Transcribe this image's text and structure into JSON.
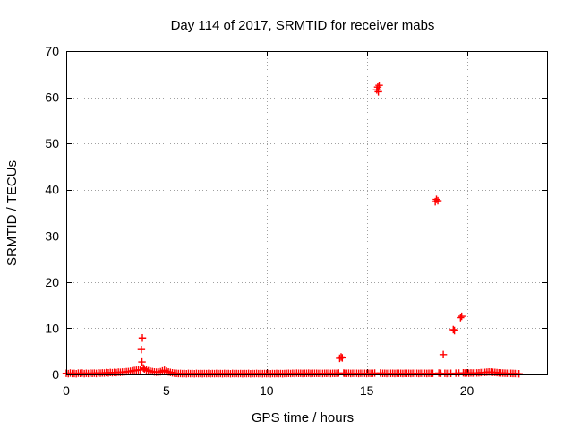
{
  "chart_data": {
    "type": "scatter",
    "title": "Day 114 of 2017, SRMTID for receiver mabs",
    "xlabel": "GPS time / hours",
    "ylabel": "SRMTID / TECUs",
    "xlim": [
      0,
      24
    ],
    "ylim": [
      0,
      70
    ],
    "x_ticks": [
      0,
      5,
      10,
      15,
      20
    ],
    "y_ticks": [
      0,
      10,
      20,
      30,
      40,
      50,
      60,
      70
    ],
    "x_tick_labels": [
      "0",
      "5",
      "10",
      "15",
      "20"
    ],
    "y_tick_labels": [
      "0",
      "10",
      "20",
      "30",
      "40",
      "50",
      "60",
      "70"
    ],
    "grid": true,
    "legend": "none",
    "marker": "plus",
    "point_color": "#ff0000",
    "series": [
      {
        "name": "SRMTID",
        "points": [
          [
            0.0,
            0.25
          ],
          [
            0.1,
            0.18
          ],
          [
            0.2,
            0.3
          ],
          [
            0.3,
            0.2
          ],
          [
            0.4,
            0.22
          ],
          [
            0.5,
            0.16
          ],
          [
            0.6,
            0.28
          ],
          [
            0.7,
            0.24
          ],
          [
            0.8,
            0.3
          ],
          [
            0.9,
            0.18
          ],
          [
            1.0,
            0.26
          ],
          [
            1.1,
            0.2
          ],
          [
            1.2,
            0.3
          ],
          [
            1.3,
            0.24
          ],
          [
            1.4,
            0.28
          ],
          [
            1.5,
            0.22
          ],
          [
            1.6,
            0.35
          ],
          [
            1.7,
            0.28
          ],
          [
            1.8,
            0.32
          ],
          [
            1.9,
            0.3
          ],
          [
            2.0,
            0.4
          ],
          [
            2.1,
            0.34
          ],
          [
            2.2,
            0.42
          ],
          [
            2.3,
            0.38
          ],
          [
            2.4,
            0.44
          ],
          [
            2.5,
            0.4
          ],
          [
            2.6,
            0.5
          ],
          [
            2.7,
            0.46
          ],
          [
            2.8,
            0.52
          ],
          [
            2.9,
            0.55
          ],
          [
            3.0,
            0.6
          ],
          [
            3.1,
            0.62
          ],
          [
            3.2,
            0.7
          ],
          [
            3.3,
            0.78
          ],
          [
            3.4,
            0.85
          ],
          [
            3.5,
            0.9
          ],
          [
            3.6,
            0.95
          ],
          [
            3.7,
            1.0
          ],
          [
            3.75,
            5.4
          ],
          [
            3.78,
            2.7
          ],
          [
            3.8,
            7.9
          ],
          [
            3.85,
            1.4
          ],
          [
            3.9,
            1.2
          ],
          [
            4.0,
            0.95
          ],
          [
            4.1,
            0.8
          ],
          [
            4.2,
            0.7
          ],
          [
            4.3,
            0.62
          ],
          [
            4.4,
            0.55
          ],
          [
            4.5,
            0.5
          ],
          [
            4.6,
            0.52
          ],
          [
            4.7,
            0.58
          ],
          [
            4.8,
            0.75
          ],
          [
            4.9,
            0.9
          ],
          [
            5.0,
            0.7
          ],
          [
            5.1,
            0.55
          ],
          [
            5.2,
            0.45
          ],
          [
            5.3,
            0.35
          ],
          [
            5.4,
            0.28
          ],
          [
            5.5,
            0.24
          ],
          [
            5.6,
            0.2
          ],
          [
            5.7,
            0.22
          ],
          [
            5.8,
            0.18
          ],
          [
            5.9,
            0.2
          ],
          [
            6.0,
            0.16
          ],
          [
            6.1,
            0.22
          ],
          [
            6.2,
            0.18
          ],
          [
            6.3,
            0.2
          ],
          [
            6.4,
            0.16
          ],
          [
            6.5,
            0.22
          ],
          [
            6.6,
            0.18
          ],
          [
            6.7,
            0.2
          ],
          [
            6.8,
            0.17
          ],
          [
            6.9,
            0.2
          ],
          [
            7.0,
            0.18
          ],
          [
            7.1,
            0.22
          ],
          [
            7.2,
            0.16
          ],
          [
            7.3,
            0.2
          ],
          [
            7.4,
            0.18
          ],
          [
            7.5,
            0.22
          ],
          [
            7.6,
            0.18
          ],
          [
            7.7,
            0.2
          ],
          [
            7.8,
            0.17
          ],
          [
            7.9,
            0.22
          ],
          [
            8.0,
            0.18
          ],
          [
            8.1,
            0.2
          ],
          [
            8.2,
            0.16
          ],
          [
            8.3,
            0.22
          ],
          [
            8.4,
            0.18
          ],
          [
            8.5,
            0.2
          ],
          [
            8.6,
            0.18
          ],
          [
            8.7,
            0.21
          ],
          [
            8.8,
            0.17
          ],
          [
            8.9,
            0.2
          ],
          [
            9.0,
            0.18
          ],
          [
            9.1,
            0.22
          ],
          [
            9.2,
            0.16
          ],
          [
            9.3,
            0.2
          ],
          [
            9.4,
            0.18
          ],
          [
            9.5,
            0.22
          ],
          [
            9.6,
            0.18
          ],
          [
            9.7,
            0.2
          ],
          [
            9.8,
            0.17
          ],
          [
            9.9,
            0.2
          ],
          [
            10.0,
            0.18
          ],
          [
            10.1,
            0.22
          ],
          [
            10.2,
            0.16
          ],
          [
            10.3,
            0.2
          ],
          [
            10.4,
            0.18
          ],
          [
            10.5,
            0.22
          ],
          [
            10.6,
            0.18
          ],
          [
            10.7,
            0.2
          ],
          [
            10.8,
            0.17
          ],
          [
            10.9,
            0.2
          ],
          [
            11.0,
            0.22
          ],
          [
            11.1,
            0.24
          ],
          [
            11.2,
            0.2
          ],
          [
            11.3,
            0.26
          ],
          [
            11.4,
            0.22
          ],
          [
            11.5,
            0.28
          ],
          [
            11.6,
            0.24
          ],
          [
            11.7,
            0.25
          ],
          [
            11.8,
            0.22
          ],
          [
            11.9,
            0.26
          ],
          [
            12.0,
            0.24
          ],
          [
            12.1,
            0.27
          ],
          [
            12.2,
            0.22
          ],
          [
            12.3,
            0.25
          ],
          [
            12.4,
            0.24
          ],
          [
            12.5,
            0.26
          ],
          [
            12.6,
            0.23
          ],
          [
            12.7,
            0.25
          ],
          [
            12.8,
            0.22
          ],
          [
            12.9,
            0.26
          ],
          [
            13.0,
            0.24
          ],
          [
            13.1,
            0.27
          ],
          [
            13.2,
            0.22
          ],
          [
            13.3,
            0.25
          ],
          [
            13.4,
            0.24
          ],
          [
            13.5,
            0.26
          ],
          [
            13.6,
            0.3
          ],
          [
            13.65,
            3.5
          ],
          [
            13.72,
            3.8
          ],
          [
            13.78,
            3.6
          ],
          [
            13.85,
            0.3
          ],
          [
            13.9,
            0.26
          ],
          [
            14.0,
            0.24
          ],
          [
            14.1,
            0.28
          ],
          [
            14.2,
            0.22
          ],
          [
            14.3,
            0.25
          ],
          [
            14.4,
            0.24
          ],
          [
            14.5,
            0.26
          ],
          [
            14.6,
            0.22
          ],
          [
            14.7,
            0.25
          ],
          [
            14.8,
            0.24
          ],
          [
            14.9,
            0.26
          ],
          [
            15.0,
            0.22
          ],
          [
            15.1,
            0.25
          ],
          [
            15.2,
            0.24
          ],
          [
            15.3,
            0.26
          ],
          [
            15.4,
            0.3
          ],
          [
            15.5,
            61.6
          ],
          [
            15.55,
            62.2
          ],
          [
            15.58,
            61.2
          ],
          [
            15.62,
            62.6
          ],
          [
            15.68,
            0.3
          ],
          [
            15.7,
            0.28
          ],
          [
            15.8,
            0.24
          ],
          [
            15.9,
            0.26
          ],
          [
            16.0,
            0.22
          ],
          [
            16.1,
            0.25
          ],
          [
            16.2,
            0.24
          ],
          [
            16.3,
            0.26
          ],
          [
            16.4,
            0.22
          ],
          [
            16.5,
            0.25
          ],
          [
            16.6,
            0.24
          ],
          [
            16.7,
            0.26
          ],
          [
            16.8,
            0.22
          ],
          [
            16.9,
            0.25
          ],
          [
            17.0,
            0.24
          ],
          [
            17.1,
            0.26
          ],
          [
            17.2,
            0.22
          ],
          [
            17.3,
            0.25
          ],
          [
            17.4,
            0.24
          ],
          [
            17.5,
            0.26
          ],
          [
            17.6,
            0.22
          ],
          [
            17.7,
            0.25
          ],
          [
            17.8,
            0.24
          ],
          [
            17.9,
            0.26
          ],
          [
            18.0,
            0.22
          ],
          [
            18.1,
            0.25
          ],
          [
            18.2,
            0.24
          ],
          [
            18.3,
            0.26
          ],
          [
            18.42,
            37.4
          ],
          [
            18.48,
            37.9
          ],
          [
            18.55,
            37.6
          ],
          [
            18.6,
            0.3
          ],
          [
            18.7,
            0.26
          ],
          [
            18.82,
            4.3
          ],
          [
            18.9,
            0.26
          ],
          [
            19.0,
            0.22
          ],
          [
            19.1,
            0.25
          ],
          [
            19.2,
            0.24
          ],
          [
            19.32,
            9.7
          ],
          [
            19.38,
            9.5
          ],
          [
            19.45,
            0.28
          ],
          [
            19.6,
            0.3
          ],
          [
            19.68,
            12.3
          ],
          [
            19.74,
            12.6
          ],
          [
            19.82,
            0.35
          ],
          [
            19.9,
            0.3
          ],
          [
            20.0,
            0.34
          ],
          [
            20.1,
            0.28
          ],
          [
            20.2,
            0.32
          ],
          [
            20.3,
            0.3
          ],
          [
            20.4,
            0.35
          ],
          [
            20.5,
            0.32
          ],
          [
            20.6,
            0.36
          ],
          [
            20.7,
            0.4
          ],
          [
            20.8,
            0.42
          ],
          [
            20.9,
            0.45
          ],
          [
            21.0,
            0.5
          ],
          [
            21.1,
            0.55
          ],
          [
            21.2,
            0.52
          ],
          [
            21.3,
            0.48
          ],
          [
            21.4,
            0.45
          ],
          [
            21.5,
            0.4
          ],
          [
            21.6,
            0.36
          ],
          [
            21.7,
            0.32
          ],
          [
            21.8,
            0.3
          ],
          [
            21.9,
            0.28
          ],
          [
            22.0,
            0.26
          ],
          [
            22.1,
            0.25
          ],
          [
            22.2,
            0.24
          ],
          [
            22.3,
            0.22
          ],
          [
            22.4,
            0.2
          ],
          [
            22.5,
            0.18
          ],
          [
            22.6,
            0.16
          ]
        ]
      }
    ]
  }
}
